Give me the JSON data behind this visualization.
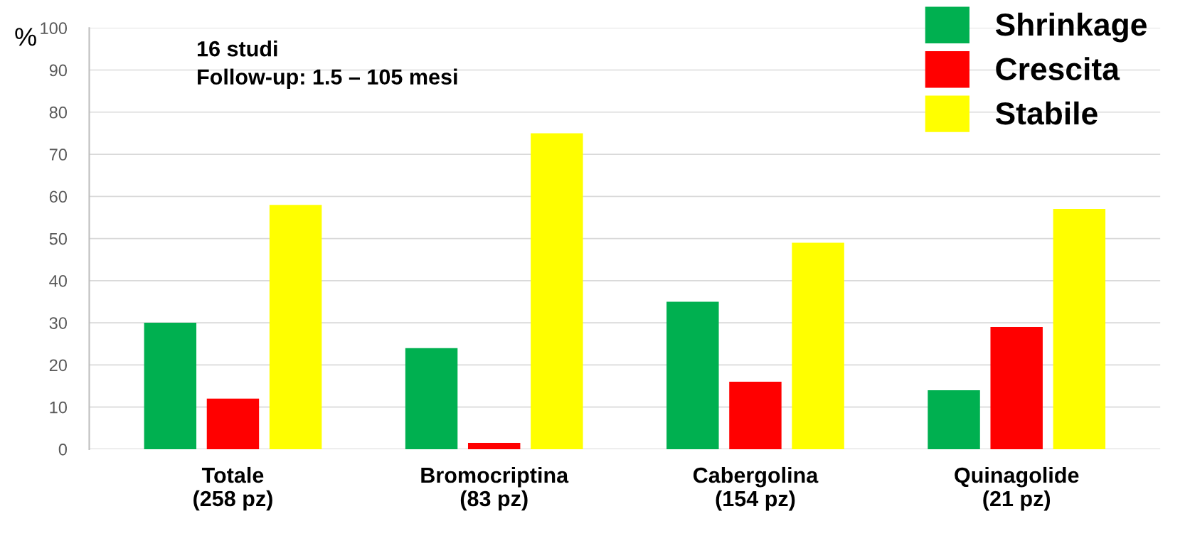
{
  "chart_data": {
    "type": "bar",
    "ylabel": "%",
    "categories": [
      "Totale\n(258 pz)",
      "Bromocriptina\n(83 pz)",
      "Cabergolina\n(154 pz)",
      "Quinagolide\n(21 pz)"
    ],
    "series": [
      {
        "name": "Shrinkage",
        "color": "#00b050",
        "values": [
          30,
          24,
          35,
          14
        ]
      },
      {
        "name": "Crescita",
        "color": "#ff0000",
        "values": [
          12,
          1.5,
          16,
          29
        ]
      },
      {
        "name": "Stabile",
        "color": "#ffff00",
        "values": [
          58,
          75,
          49,
          57
        ]
      }
    ],
    "ylim": [
      0,
      100
    ],
    "yticks": [
      0,
      10,
      20,
      30,
      40,
      50,
      60,
      70,
      80,
      90,
      100
    ],
    "grid": "y",
    "legend": "top right",
    "annotations": [
      "16 studi\nFollow-up: 1.5 – 105 mesi"
    ]
  }
}
